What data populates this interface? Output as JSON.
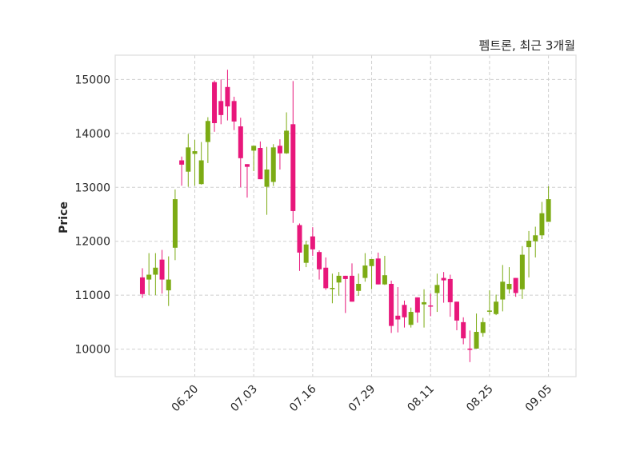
{
  "chart_data": {
    "type": "candlestick",
    "title": "펨트론, 최근 3개월",
    "xlabel": "",
    "ylabel": "Price",
    "ylim": [
      9490,
      15450
    ],
    "xlim": [
      -4.15,
      66.2
    ],
    "grid": true,
    "yticks": [
      10000,
      11000,
      12000,
      13000,
      14000,
      15000
    ],
    "xticks": [
      {
        "index": 8,
        "label": "06.20"
      },
      {
        "index": 17,
        "label": "07.03"
      },
      {
        "index": 26,
        "label": "07.16"
      },
      {
        "index": 35,
        "label": "07.29"
      },
      {
        "index": 44,
        "label": "08.11"
      },
      {
        "index": 53,
        "label": "08.25"
      },
      {
        "index": 62,
        "label": "09.05"
      }
    ],
    "colors": {
      "up": "#7cab14",
      "down": "#e8177b",
      "grid": "#cfcfcf",
      "frame": "#dcdcdc"
    },
    "ohlc_fields": [
      "open",
      "high",
      "low",
      "close"
    ],
    "ohlc": [
      [
        11330,
        11500,
        10950,
        11020
      ],
      [
        11290,
        11780,
        11000,
        11380
      ],
      [
        11380,
        11780,
        11000,
        11510
      ],
      [
        11660,
        11840,
        11030,
        11290
      ],
      [
        11090,
        11720,
        10800,
        11290
      ],
      [
        11880,
        12960,
        11650,
        12780
      ],
      [
        13500,
        13570,
        13030,
        13420
      ],
      [
        13290,
        13990,
        13010,
        13740
      ],
      [
        13620,
        13880,
        13030,
        13670
      ],
      [
        13060,
        13840,
        13050,
        13500
      ],
      [
        13840,
        14300,
        13450,
        14230
      ],
      [
        14950,
        14980,
        14030,
        14190
      ],
      [
        14600,
        15000,
        14170,
        14340
      ],
      [
        14860,
        15180,
        14240,
        14500
      ],
      [
        14600,
        14680,
        14060,
        14220
      ],
      [
        14130,
        14290,
        13000,
        13540
      ],
      [
        13430,
        13430,
        12810,
        13380
      ],
      [
        13680,
        13770,
        13300,
        13770
      ],
      [
        13730,
        13850,
        13150,
        13150
      ],
      [
        13010,
        13750,
        12490,
        13330
      ],
      [
        13100,
        13800,
        13025,
        13740
      ],
      [
        13770,
        13890,
        13330,
        13630
      ],
      [
        13630,
        14390,
        13620,
        14050
      ],
      [
        14170,
        14970,
        12340,
        12560
      ],
      [
        12300,
        12330,
        11450,
        11790
      ],
      [
        11600,
        12010,
        11520,
        11940
      ],
      [
        12090,
        12260,
        11730,
        11850
      ],
      [
        11800,
        11830,
        11290,
        11480
      ],
      [
        11510,
        11700,
        11100,
        11130
      ],
      [
        11115,
        11400,
        10850,
        11135
      ],
      [
        11235,
        11430,
        10990,
        11360
      ],
      [
        11360,
        11360,
        10670,
        11300
      ],
      [
        11360,
        11590,
        10880,
        10880
      ],
      [
        11080,
        11400,
        10990,
        11210
      ],
      [
        11320,
        11780,
        11250,
        11550
      ],
      [
        11540,
        11670,
        11110,
        11670
      ],
      [
        11680,
        11790,
        11200,
        11200
      ],
      [
        11200,
        11730,
        11190,
        11370
      ],
      [
        11210,
        11270,
        10300,
        10430
      ],
      [
        10620,
        11150,
        10310,
        10550
      ],
      [
        10820,
        10900,
        10400,
        10590
      ],
      [
        10450,
        10770,
        10400,
        10690
      ],
      [
        10960,
        10960,
        10490,
        10680
      ],
      [
        10830,
        11110,
        10400,
        10870
      ],
      [
        10810,
        11030,
        10610,
        10800
      ],
      [
        11040,
        11400,
        10690,
        11190
      ],
      [
        11320,
        11430,
        10860,
        11275
      ],
      [
        11300,
        11380,
        10600,
        10870
      ],
      [
        10880,
        10880,
        10350,
        10530
      ],
      [
        10500,
        10590,
        10090,
        10200
      ],
      [
        10010,
        10345,
        9760,
        9995
      ],
      [
        10010,
        10660,
        10010,
        10320
      ],
      [
        10300,
        10580,
        10230,
        10500
      ],
      [
        10695,
        11090,
        10640,
        10715
      ],
      [
        10650,
        11010,
        10630,
        10880
      ],
      [
        10920,
        11560,
        10700,
        11250
      ],
      [
        11110,
        11520,
        11030,
        11210
      ],
      [
        11320,
        11320,
        10970,
        11040
      ],
      [
        11110,
        11910,
        10930,
        11750
      ],
      [
        11890,
        12190,
        11330,
        12010
      ],
      [
        12000,
        12270,
        11700,
        12110
      ],
      [
        12110,
        12730,
        12040,
        12520
      ],
      [
        12360,
        13020,
        12360,
        12780
      ]
    ]
  }
}
